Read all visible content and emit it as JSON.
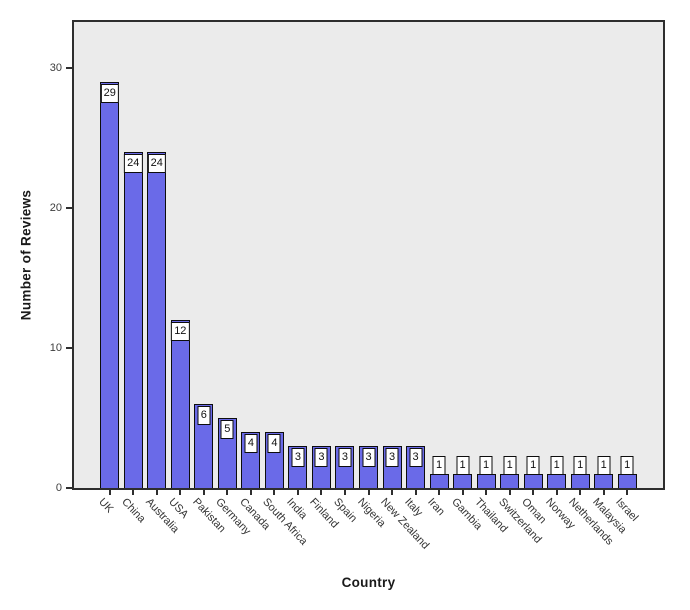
{
  "chart_data": {
    "type": "bar",
    "title": "",
    "xlabel": "Country",
    "ylabel": "Number of Reviews",
    "categories": [
      "UK",
      "China",
      "Australia",
      "USA",
      "Pakistan",
      "Germany",
      "Canada",
      "South Africa",
      "India",
      "Finland",
      "Spain",
      "Nigeria",
      "New Zealand",
      "Italy",
      "Iran",
      "Gambia",
      "Thailand",
      "Switzerland",
      "Oman",
      "Norway",
      "Netherlands",
      "Malaysia",
      "Israel"
    ],
    "values": [
      29,
      24,
      24,
      12,
      6,
      5,
      4,
      4,
      3,
      3,
      3,
      3,
      3,
      3,
      1,
      1,
      1,
      1,
      1,
      1,
      1,
      1,
      1
    ],
    "bar_value_labels": [
      "29",
      "24",
      "24",
      "12",
      "6",
      "5",
      "4",
      "4",
      "3",
      "3",
      "3",
      "3",
      "3",
      "3",
      "1",
      "1",
      "1",
      "1",
      "1",
      "1",
      "1",
      "1",
      "1"
    ],
    "yticks": [
      0,
      10,
      20,
      30
    ],
    "ylim": [
      0,
      33.5
    ],
    "grid": false,
    "legend": "none",
    "category_label_rotation_deg": 47,
    "colors": {
      "bar_fill": "#6a6ae8",
      "bar_border": "#0d0d0d",
      "plot_bg": "#ebebeb",
      "plot_border": "#2e2e2e",
      "value_box_bg": "#ffffff",
      "value_box_border": "#0d0d0d",
      "tick_text": "#3d3d3d",
      "axis_title_text": "#1a1a1a",
      "page_bg": "#ffffff"
    }
  }
}
